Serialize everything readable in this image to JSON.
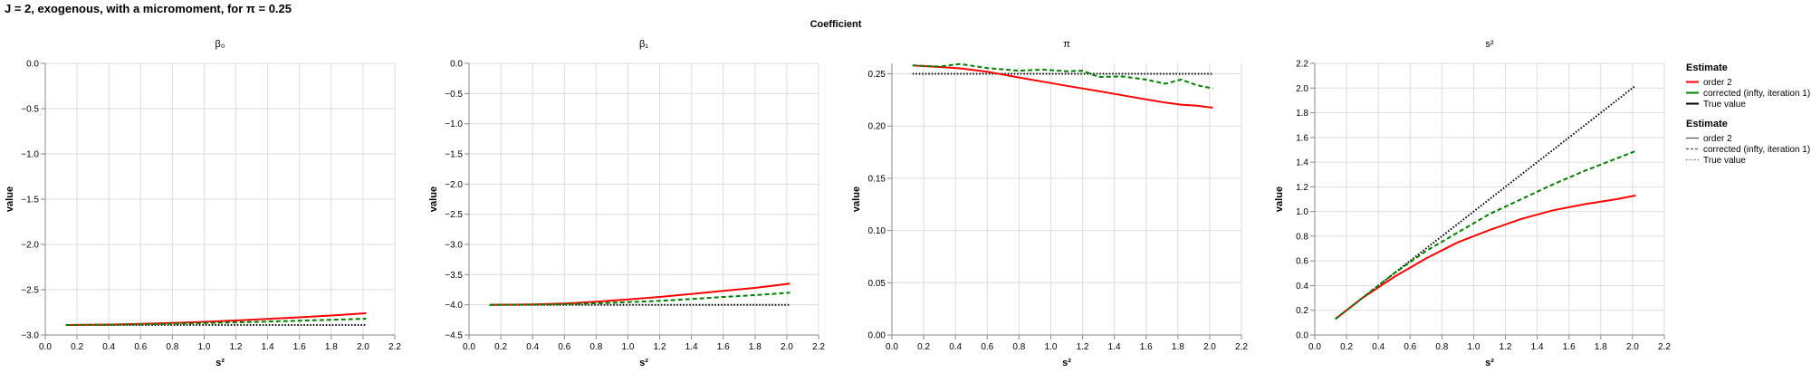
{
  "title": "J = 2, exogenous, with a micromoment,  for π = 0.25",
  "facet_title": "Coefficient",
  "colors": {
    "order2": "#ff0000",
    "corrected": "#008000",
    "true": "#000000"
  },
  "legend": [
    {
      "title": "Estimate",
      "kind": "color",
      "items": [
        {
          "label": "order 2",
          "color": "#ff0000"
        },
        {
          "label": "corrected (infty, iteration 1)",
          "color": "#008000"
        },
        {
          "label": "True value",
          "color": "#000000"
        }
      ]
    },
    {
      "title": "Estimate",
      "kind": "dash",
      "items": [
        {
          "label": "order 2",
          "dash": "solid"
        },
        {
          "label": "corrected (infty, iteration 1)",
          "dash": "dashed"
        },
        {
          "label": "True value",
          "dash": "dotted"
        }
      ]
    }
  ],
  "chart_data": [
    {
      "type": "line",
      "title": "β₀",
      "xlabel": "s²",
      "ylabel": "value",
      "xlim": [
        0,
        2.2
      ],
      "ylim": [
        -3.0,
        0.0
      ],
      "xticks": [
        0.0,
        0.2,
        0.4,
        0.6,
        0.8,
        1.0,
        1.2,
        1.4,
        1.6,
        1.8,
        2.0,
        2.2
      ],
      "yticks": [
        -3.0,
        -2.5,
        -2.0,
        -1.5,
        -1.0,
        -0.5,
        0.0
      ],
      "ytick_labels": [
        "−3.0",
        "−2.5",
        "−2.0",
        "−1.5",
        "−1.0",
        "−0.5",
        "0.0"
      ],
      "x": [
        0.13,
        0.4,
        0.6,
        0.8,
        1.0,
        1.2,
        1.4,
        1.6,
        1.8,
        2.02
      ],
      "series": [
        {
          "name": "order 2",
          "key": "order2",
          "dash": "solid",
          "values": [
            -2.89,
            -2.885,
            -2.878,
            -2.868,
            -2.855,
            -2.84,
            -2.823,
            -2.805,
            -2.785,
            -2.76
          ]
        },
        {
          "name": "corrected (infty, iteration 1)",
          "key": "corrected",
          "dash": "dashed",
          "values": [
            -2.89,
            -2.887,
            -2.882,
            -2.876,
            -2.869,
            -2.861,
            -2.852,
            -2.842,
            -2.832,
            -2.82
          ]
        },
        {
          "name": "True value",
          "key": "true",
          "dash": "dotted",
          "values": [
            -2.89,
            -2.89,
            -2.89,
            -2.89,
            -2.89,
            -2.89,
            -2.89,
            -2.89,
            -2.89,
            -2.89
          ]
        }
      ]
    },
    {
      "type": "line",
      "title": "β₁",
      "xlabel": "s²",
      "ylabel": "value",
      "xlim": [
        0,
        2.2
      ],
      "ylim": [
        -4.5,
        0.0
      ],
      "xticks": [
        0.0,
        0.2,
        0.4,
        0.6,
        0.8,
        1.0,
        1.2,
        1.4,
        1.6,
        1.8,
        2.0,
        2.2
      ],
      "yticks": [
        -4.5,
        -4.0,
        -3.5,
        -3.0,
        -2.5,
        -2.0,
        -1.5,
        -1.0,
        -0.5,
        0.0
      ],
      "ytick_labels": [
        "−4.5",
        "−4.0",
        "−3.5",
        "−3.0",
        "−2.5",
        "−2.0",
        "−1.5",
        "−1.0",
        "−0.5",
        "0.0"
      ],
      "x": [
        0.13,
        0.4,
        0.6,
        0.8,
        1.0,
        1.2,
        1.4,
        1.6,
        1.8,
        2.02
      ],
      "series": [
        {
          "name": "order 2",
          "key": "order2",
          "dash": "solid",
          "values": [
            -4.0,
            -3.995,
            -3.98,
            -3.95,
            -3.91,
            -3.87,
            -3.82,
            -3.77,
            -3.72,
            -3.65
          ]
        },
        {
          "name": "corrected (infty, iteration 1)",
          "key": "corrected",
          "dash": "dashed",
          "values": [
            -4.0,
            -3.998,
            -3.99,
            -3.975,
            -3.955,
            -3.935,
            -3.905,
            -3.87,
            -3.84,
            -3.8
          ]
        },
        {
          "name": "True value",
          "key": "true",
          "dash": "dotted",
          "values": [
            -4.0,
            -4.0,
            -4.0,
            -4.0,
            -4.0,
            -4.0,
            -4.0,
            -4.0,
            -4.0,
            -4.0
          ]
        }
      ]
    },
    {
      "type": "line",
      "title": "π",
      "xlabel": "s²",
      "ylabel": "value",
      "xlim": [
        0,
        2.2
      ],
      "ylim": [
        0.0,
        0.26
      ],
      "xticks": [
        0.0,
        0.2,
        0.4,
        0.6,
        0.8,
        1.0,
        1.2,
        1.4,
        1.6,
        1.8,
        2.0,
        2.2
      ],
      "yticks": [
        0.0,
        0.05,
        0.1,
        0.15,
        0.2,
        0.25
      ],
      "ytick_labels": [
        "0.00",
        "0.05",
        "0.10",
        "0.15",
        "0.20",
        "0.25"
      ],
      "x": [
        0.13,
        0.3,
        0.43,
        0.6,
        0.8,
        0.95,
        1.1,
        1.2,
        1.3,
        1.45,
        1.6,
        1.72,
        1.82,
        1.92,
        2.02
      ],
      "series": [
        {
          "name": "order 2",
          "key": "order2",
          "dash": "solid",
          "values": [
            0.258,
            0.2565,
            0.2552,
            0.252,
            0.2465,
            0.2425,
            0.2385,
            0.236,
            0.2335,
            0.2295,
            0.2255,
            0.2225,
            0.2205,
            0.2195,
            0.2175
          ]
        },
        {
          "name": "corrected (infty, iteration 1)",
          "key": "corrected",
          "dash": "dashed",
          "values": [
            0.258,
            0.257,
            0.2595,
            0.2555,
            0.253,
            0.254,
            0.2525,
            0.253,
            0.247,
            0.2475,
            0.2445,
            0.2405,
            0.2445,
            0.239,
            0.236
          ]
        },
        {
          "name": "True value",
          "key": "true",
          "dash": "dotted",
          "values": [
            0.25,
            0.25,
            0.25,
            0.25,
            0.25,
            0.25,
            0.25,
            0.25,
            0.25,
            0.25,
            0.25,
            0.25,
            0.25,
            0.25,
            0.25
          ]
        }
      ]
    },
    {
      "type": "line",
      "title": "s²",
      "xlabel": "s²",
      "ylabel": "value",
      "xlim": [
        0,
        2.2
      ],
      "ylim": [
        0.0,
        2.2
      ],
      "xticks": [
        0.0,
        0.2,
        0.4,
        0.6,
        0.8,
        1.0,
        1.2,
        1.4,
        1.6,
        1.8,
        2.0,
        2.2
      ],
      "yticks": [
        0.0,
        0.2,
        0.4,
        0.6,
        0.8,
        1.0,
        1.2,
        1.4,
        1.6,
        1.8,
        2.0,
        2.2
      ],
      "ytick_labels": [
        "0.0",
        "0.2",
        "0.4",
        "0.6",
        "0.8",
        "1.0",
        "1.2",
        "1.4",
        "1.6",
        "1.8",
        "2.0",
        "2.2"
      ],
      "x": [
        0.13,
        0.3,
        0.5,
        0.7,
        0.9,
        1.1,
        1.3,
        1.5,
        1.7,
        1.9,
        2.02
      ],
      "series": [
        {
          "name": "order 2",
          "key": "order2",
          "dash": "solid",
          "values": [
            0.13,
            0.3,
            0.47,
            0.62,
            0.75,
            0.85,
            0.94,
            1.01,
            1.06,
            1.1,
            1.13
          ]
        },
        {
          "name": "corrected (infty, iteration 1)",
          "key": "corrected",
          "dash": "dashed",
          "values": [
            0.13,
            0.3,
            0.5,
            0.68,
            0.83,
            0.98,
            1.1,
            1.22,
            1.33,
            1.43,
            1.49
          ]
        },
        {
          "name": "True value",
          "key": "true",
          "dash": "dotted",
          "values": [
            0.13,
            0.3,
            0.5,
            0.7,
            0.9,
            1.1,
            1.3,
            1.5,
            1.7,
            1.9,
            2.02
          ]
        }
      ]
    }
  ]
}
